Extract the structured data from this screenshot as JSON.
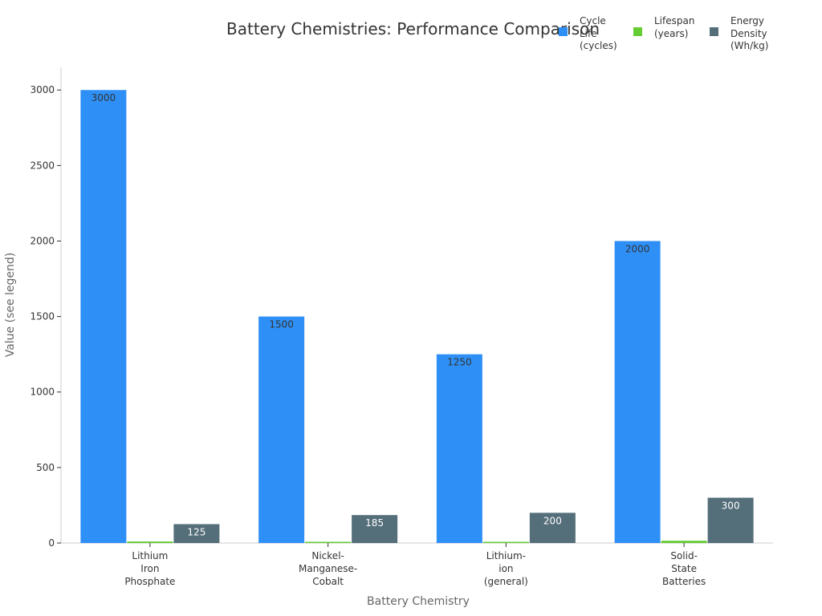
{
  "chart_data": {
    "type": "bar",
    "title": "Battery Chemistries: Performance Comparison",
    "xlabel": "Battery Chemistry",
    "ylabel": "Value (see legend)",
    "categories": [
      "Lithium Iron Phosphate",
      "Nickel-Manganese-Cobalt",
      "Lithium-ion (general)",
      "Solid-State Batteries"
    ],
    "category_lines": [
      [
        "Lithium",
        "Iron",
        "Phosphate"
      ],
      [
        "Nickel-",
        "Manganese-",
        "Cobalt"
      ],
      [
        "Lithium-",
        "ion",
        "(general)"
      ],
      [
        "Solid-",
        "State",
        "Batteries"
      ]
    ],
    "series": [
      {
        "name": "Cycle Life (cycles)",
        "legend_label": "Cycle\nLife\n(cycles)",
        "color": "#2e90f6",
        "values": [
          3000,
          1500,
          1250,
          2000
        ],
        "show_labels": true,
        "label_color": "#333333"
      },
      {
        "name": "Lifespan (years)",
        "legend_label": "Lifespan\n(years)",
        "color": "#66cc33",
        "values": [
          10,
          8,
          8,
          15
        ],
        "show_labels": false,
        "label_color": "#333333"
      },
      {
        "name": "Energy Density (Wh/kg)",
        "legend_label": "Energy\nDensity\n(Wh/kg)",
        "color": "#546e7a",
        "values": [
          125,
          185,
          200,
          300
        ],
        "show_labels": true,
        "label_color": "#ffffff"
      }
    ],
    "ylim": [
      0,
      3150
    ],
    "yticks": [
      0,
      500,
      1000,
      1500,
      2000,
      2500,
      3000
    ],
    "grid": false,
    "legend_position": "top-right"
  }
}
